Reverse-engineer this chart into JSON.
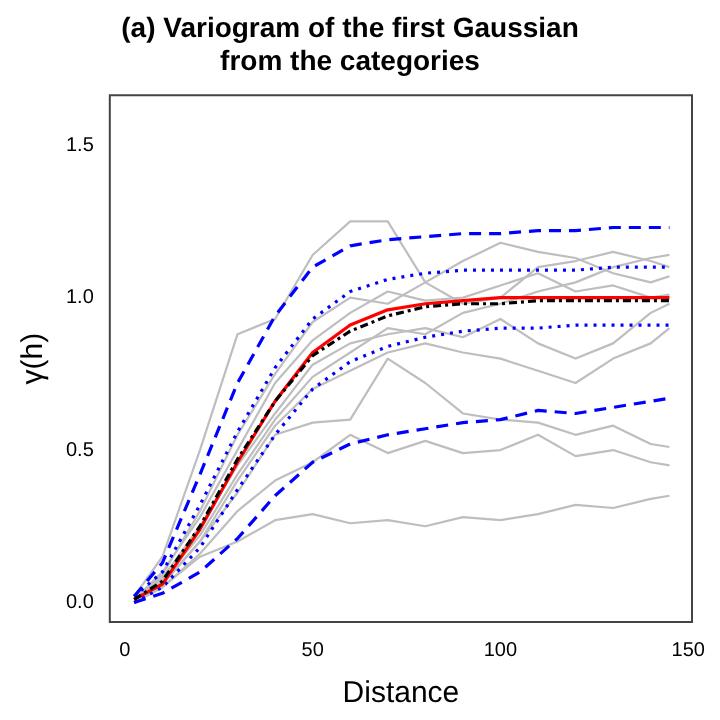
{
  "chart_data": {
    "type": "line",
    "title": "(a) Variogram of the first Gaussian\nfrom the categories",
    "xlabel": "Distance",
    "ylabel": "γ(h)",
    "x": [
      2.5,
      10,
      20,
      30,
      40,
      50,
      60,
      70,
      80,
      90,
      100,
      110,
      120,
      130,
      140,
      145
    ],
    "xlim": [
      -4,
      151
    ],
    "xticks": [
      0,
      50,
      100,
      150
    ],
    "ylim": [
      -0.064,
      1.664
    ],
    "yticks": [
      {
        "value": 0,
        "label": "0.0"
      },
      {
        "value": 0.5,
        "label": "0.5"
      },
      {
        "value": 1,
        "label": "1.0"
      },
      {
        "value": 1.5,
        "label": "1.5"
      }
    ],
    "grid": false,
    "legend": false,
    "marker": "none",
    "series": [
      {
        "color": "#bebebe",
        "line_style": "solid",
        "values": [
          0.02,
          0.15,
          0.5,
          0.88,
          0.93,
          1.14,
          1.25,
          1.25,
          1.05,
          0.98,
          1.0,
          1.1,
          1.12,
          1.15,
          1.12,
          1.1
        ]
      },
      {
        "color": "#bebebe",
        "line_style": "solid",
        "values": [
          0.0,
          0.05,
          0.15,
          0.2,
          0.27,
          0.29,
          0.26,
          0.27,
          0.25,
          0.28,
          0.27,
          0.29,
          0.32,
          0.31,
          0.34,
          0.35
        ]
      },
      {
        "color": "#bebebe",
        "line_style": "solid",
        "values": [
          0.0,
          0.05,
          0.16,
          0.3,
          0.4,
          0.46,
          0.55,
          0.49,
          0.53,
          0.49,
          0.5,
          0.55,
          0.48,
          0.5,
          0.46,
          0.45
        ]
      },
      {
        "color": "#bebebe",
        "line_style": "solid",
        "values": [
          0.0,
          0.06,
          0.2,
          0.36,
          0.55,
          0.59,
          0.6,
          0.8,
          0.72,
          0.62,
          0.6,
          0.59,
          0.55,
          0.58,
          0.52,
          0.51
        ]
      },
      {
        "color": "#bebebe",
        "line_style": "solid",
        "values": [
          0.01,
          0.08,
          0.25,
          0.45,
          0.62,
          0.78,
          0.85,
          0.88,
          0.9,
          0.87,
          0.93,
          0.85,
          0.8,
          0.85,
          0.95,
          0.98
        ]
      },
      {
        "color": "#bebebe",
        "line_style": "solid",
        "values": [
          0.01,
          0.09,
          0.3,
          0.55,
          0.75,
          0.92,
          1.0,
          0.98,
          1.05,
          1.12,
          1.18,
          1.15,
          1.13,
          1.08,
          1.05,
          1.07
        ]
      },
      {
        "color": "#bebebe",
        "line_style": "solid",
        "values": [
          0.01,
          0.07,
          0.22,
          0.42,
          0.6,
          0.74,
          0.82,
          0.9,
          0.88,
          0.95,
          0.98,
          1.02,
          1.05,
          1.1,
          1.13,
          1.14
        ]
      },
      {
        "color": "#bebebe",
        "line_style": "solid",
        "values": [
          0.0,
          0.06,
          0.2,
          0.4,
          0.58,
          0.7,
          0.76,
          0.82,
          0.85,
          0.82,
          0.8,
          0.76,
          0.72,
          0.8,
          0.85,
          0.9
        ]
      },
      {
        "color": "#bebebe",
        "line_style": "solid",
        "values": [
          0.01,
          0.1,
          0.28,
          0.5,
          0.72,
          0.86,
          0.95,
          1.02,
          0.99,
          1.0,
          1.04,
          1.08,
          1.02,
          1.04,
          1.0,
          1.01
        ]
      },
      {
        "color": "#0000ff",
        "line_style": "dashed",
        "values": [
          0.02,
          0.13,
          0.42,
          0.72,
          0.94,
          1.1,
          1.17,
          1.19,
          1.2,
          1.21,
          1.21,
          1.22,
          1.22,
          1.23,
          1.23,
          1.23
        ]
      },
      {
        "color": "#0000ff",
        "line_style": "dashed",
        "values": [
          0.0,
          0.03,
          0.1,
          0.21,
          0.35,
          0.46,
          0.52,
          0.55,
          0.57,
          0.59,
          0.6,
          0.63,
          0.62,
          0.64,
          0.66,
          0.67
        ]
      },
      {
        "color": "#0000ff",
        "line_style": "dotted",
        "values": [
          0.02,
          0.1,
          0.32,
          0.56,
          0.77,
          0.93,
          1.02,
          1.06,
          1.08,
          1.09,
          1.09,
          1.09,
          1.09,
          1.1,
          1.1,
          1.1
        ]
      },
      {
        "color": "#0000ff",
        "line_style": "dotted",
        "values": [
          0.0,
          0.05,
          0.18,
          0.37,
          0.55,
          0.7,
          0.79,
          0.84,
          0.87,
          0.89,
          0.9,
          0.9,
          0.91,
          0.91,
          0.91,
          0.91
        ]
      },
      {
        "color": "#ff0000",
        "line_style": "solid",
        "values": [
          0.01,
          0.06,
          0.24,
          0.46,
          0.66,
          0.82,
          0.91,
          0.96,
          0.98,
          0.99,
          1.0,
          1.0,
          1.0,
          1.0,
          1.0,
          1.0
        ]
      },
      {
        "color": "#000000",
        "line_style": "dashdot",
        "values": [
          0.01,
          0.07,
          0.25,
          0.47,
          0.66,
          0.81,
          0.89,
          0.94,
          0.97,
          0.98,
          0.98,
          0.99,
          0.99,
          0.99,
          0.99,
          0.99
        ]
      }
    ]
  }
}
